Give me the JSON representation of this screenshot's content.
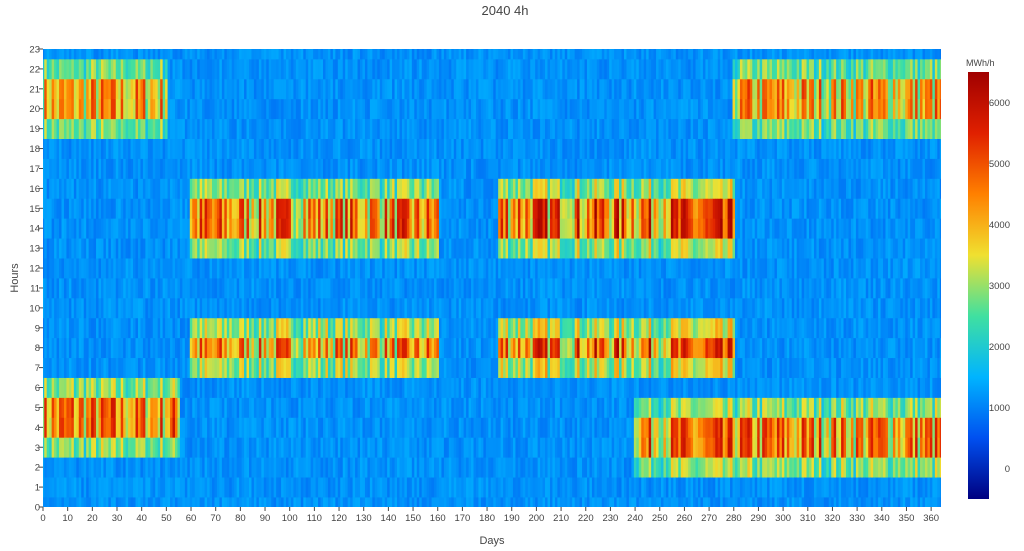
{
  "chart_data": {
    "type": "heatmap",
    "title": "2040 4h",
    "xlabel": "Days",
    "ylabel": "Hours",
    "x_range": [
      0,
      364
    ],
    "y_range": [
      0,
      23
    ],
    "x_ticks": [
      0,
      10,
      20,
      30,
      40,
      50,
      60,
      70,
      80,
      90,
      100,
      110,
      120,
      130,
      140,
      150,
      160,
      170,
      180,
      190,
      200,
      210,
      220,
      230,
      240,
      250,
      260,
      270,
      280,
      290,
      300,
      310,
      320,
      330,
      340,
      350,
      360
    ],
    "y_ticks": [
      0,
      1,
      2,
      3,
      4,
      5,
      6,
      7,
      8,
      9,
      10,
      11,
      12,
      13,
      14,
      15,
      16,
      17,
      18,
      19,
      20,
      21,
      22,
      23
    ],
    "colorbar": {
      "title": "MWh/h",
      "range": [
        -500,
        6500
      ],
      "ticks": [
        0,
        1000,
        2000,
        3000,
        4000,
        5000,
        6000
      ],
      "colorscale": [
        "#000080",
        "#0050f0",
        "#00b4ff",
        "#40e0a0",
        "#f0e030",
        "#ff8000",
        "#e02000",
        "#a00000"
      ]
    },
    "hotspots": [
      {
        "days": [
          0,
          55
        ],
        "hours": [
          3,
          6
        ],
        "value": 5500
      },
      {
        "days": [
          0,
          50
        ],
        "hours": [
          19,
          22
        ],
        "value": 5000
      },
      {
        "days": [
          60,
          160
        ],
        "hours": [
          13,
          16
        ],
        "value": 5500
      },
      {
        "days": [
          60,
          160
        ],
        "hours": [
          7,
          9
        ],
        "value": 5000
      },
      {
        "days": [
          185,
          280
        ],
        "hours": [
          13,
          16
        ],
        "value": 6000
      },
      {
        "days": [
          185,
          280
        ],
        "hours": [
          7,
          9
        ],
        "value": 5500
      },
      {
        "days": [
          240,
          364
        ],
        "hours": [
          2,
          5
        ],
        "value": 5500
      },
      {
        "days": [
          280,
          364
        ],
        "hours": [
          19,
          22
        ],
        "value": 5000
      }
    ]
  }
}
